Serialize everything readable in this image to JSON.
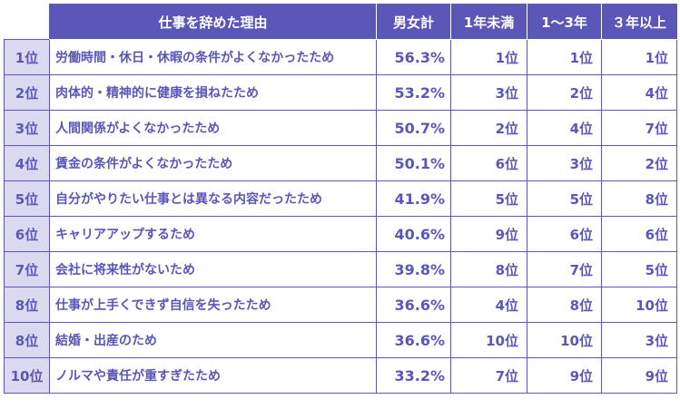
{
  "colors": {
    "accent": "#5b57b8",
    "rank_bg": "#dad9ef",
    "header_text": "#ffffff"
  },
  "headers": {
    "reason": "仕事を辞めた理由",
    "total": "男女計",
    "lt1": "1年未満",
    "y1to3": "1～3年",
    "gt3": "３年以上"
  },
  "rows": [
    {
      "rank": "1位",
      "reason": "労働時間・休日・休暇の条件がよくなかったため",
      "total": "56.3%",
      "lt1": "1位",
      "y1to3": "1位",
      "gt3": "1位"
    },
    {
      "rank": "2位",
      "reason": "肉体的・精神的に健康を損ねたため",
      "total": "53.2%",
      "lt1": "3位",
      "y1to3": "2位",
      "gt3": "4位"
    },
    {
      "rank": "3位",
      "reason": "人間関係がよくなかったため",
      "total": "50.7%",
      "lt1": "2位",
      "y1to3": "4位",
      "gt3": "7位"
    },
    {
      "rank": "4位",
      "reason": "賃金の条件がよくなかったため",
      "total": "50.1%",
      "lt1": "6位",
      "y1to3": "3位",
      "gt3": "2位"
    },
    {
      "rank": "5位",
      "reason": "自分がやりたい仕事とは異なる内容だったため",
      "total": "41.9%",
      "lt1": "5位",
      "y1to3": "5位",
      "gt3": "8位"
    },
    {
      "rank": "6位",
      "reason": "キャリアアップするため",
      "total": "40.6%",
      "lt1": "9位",
      "y1to3": "6位",
      "gt3": "6位"
    },
    {
      "rank": "7位",
      "reason": "会社に将来性がないため",
      "total": "39.8%",
      "lt1": "8位",
      "y1to3": "7位",
      "gt3": "5位"
    },
    {
      "rank": "8位",
      "reason": "仕事が上手くできず自信を失ったため",
      "total": "36.6%",
      "lt1": "4位",
      "y1to3": "8位",
      "gt3": "10位"
    },
    {
      "rank": "8位",
      "reason": "結婚・出産のため",
      "total": "36.6%",
      "lt1": "10位",
      "y1to3": "10位",
      "gt3": "3位"
    },
    {
      "rank": "10位",
      "reason": "ノルマや責任が重すぎたため",
      "total": "33.2%",
      "lt1": "7位",
      "y1to3": "9位",
      "gt3": "9位"
    }
  ]
}
